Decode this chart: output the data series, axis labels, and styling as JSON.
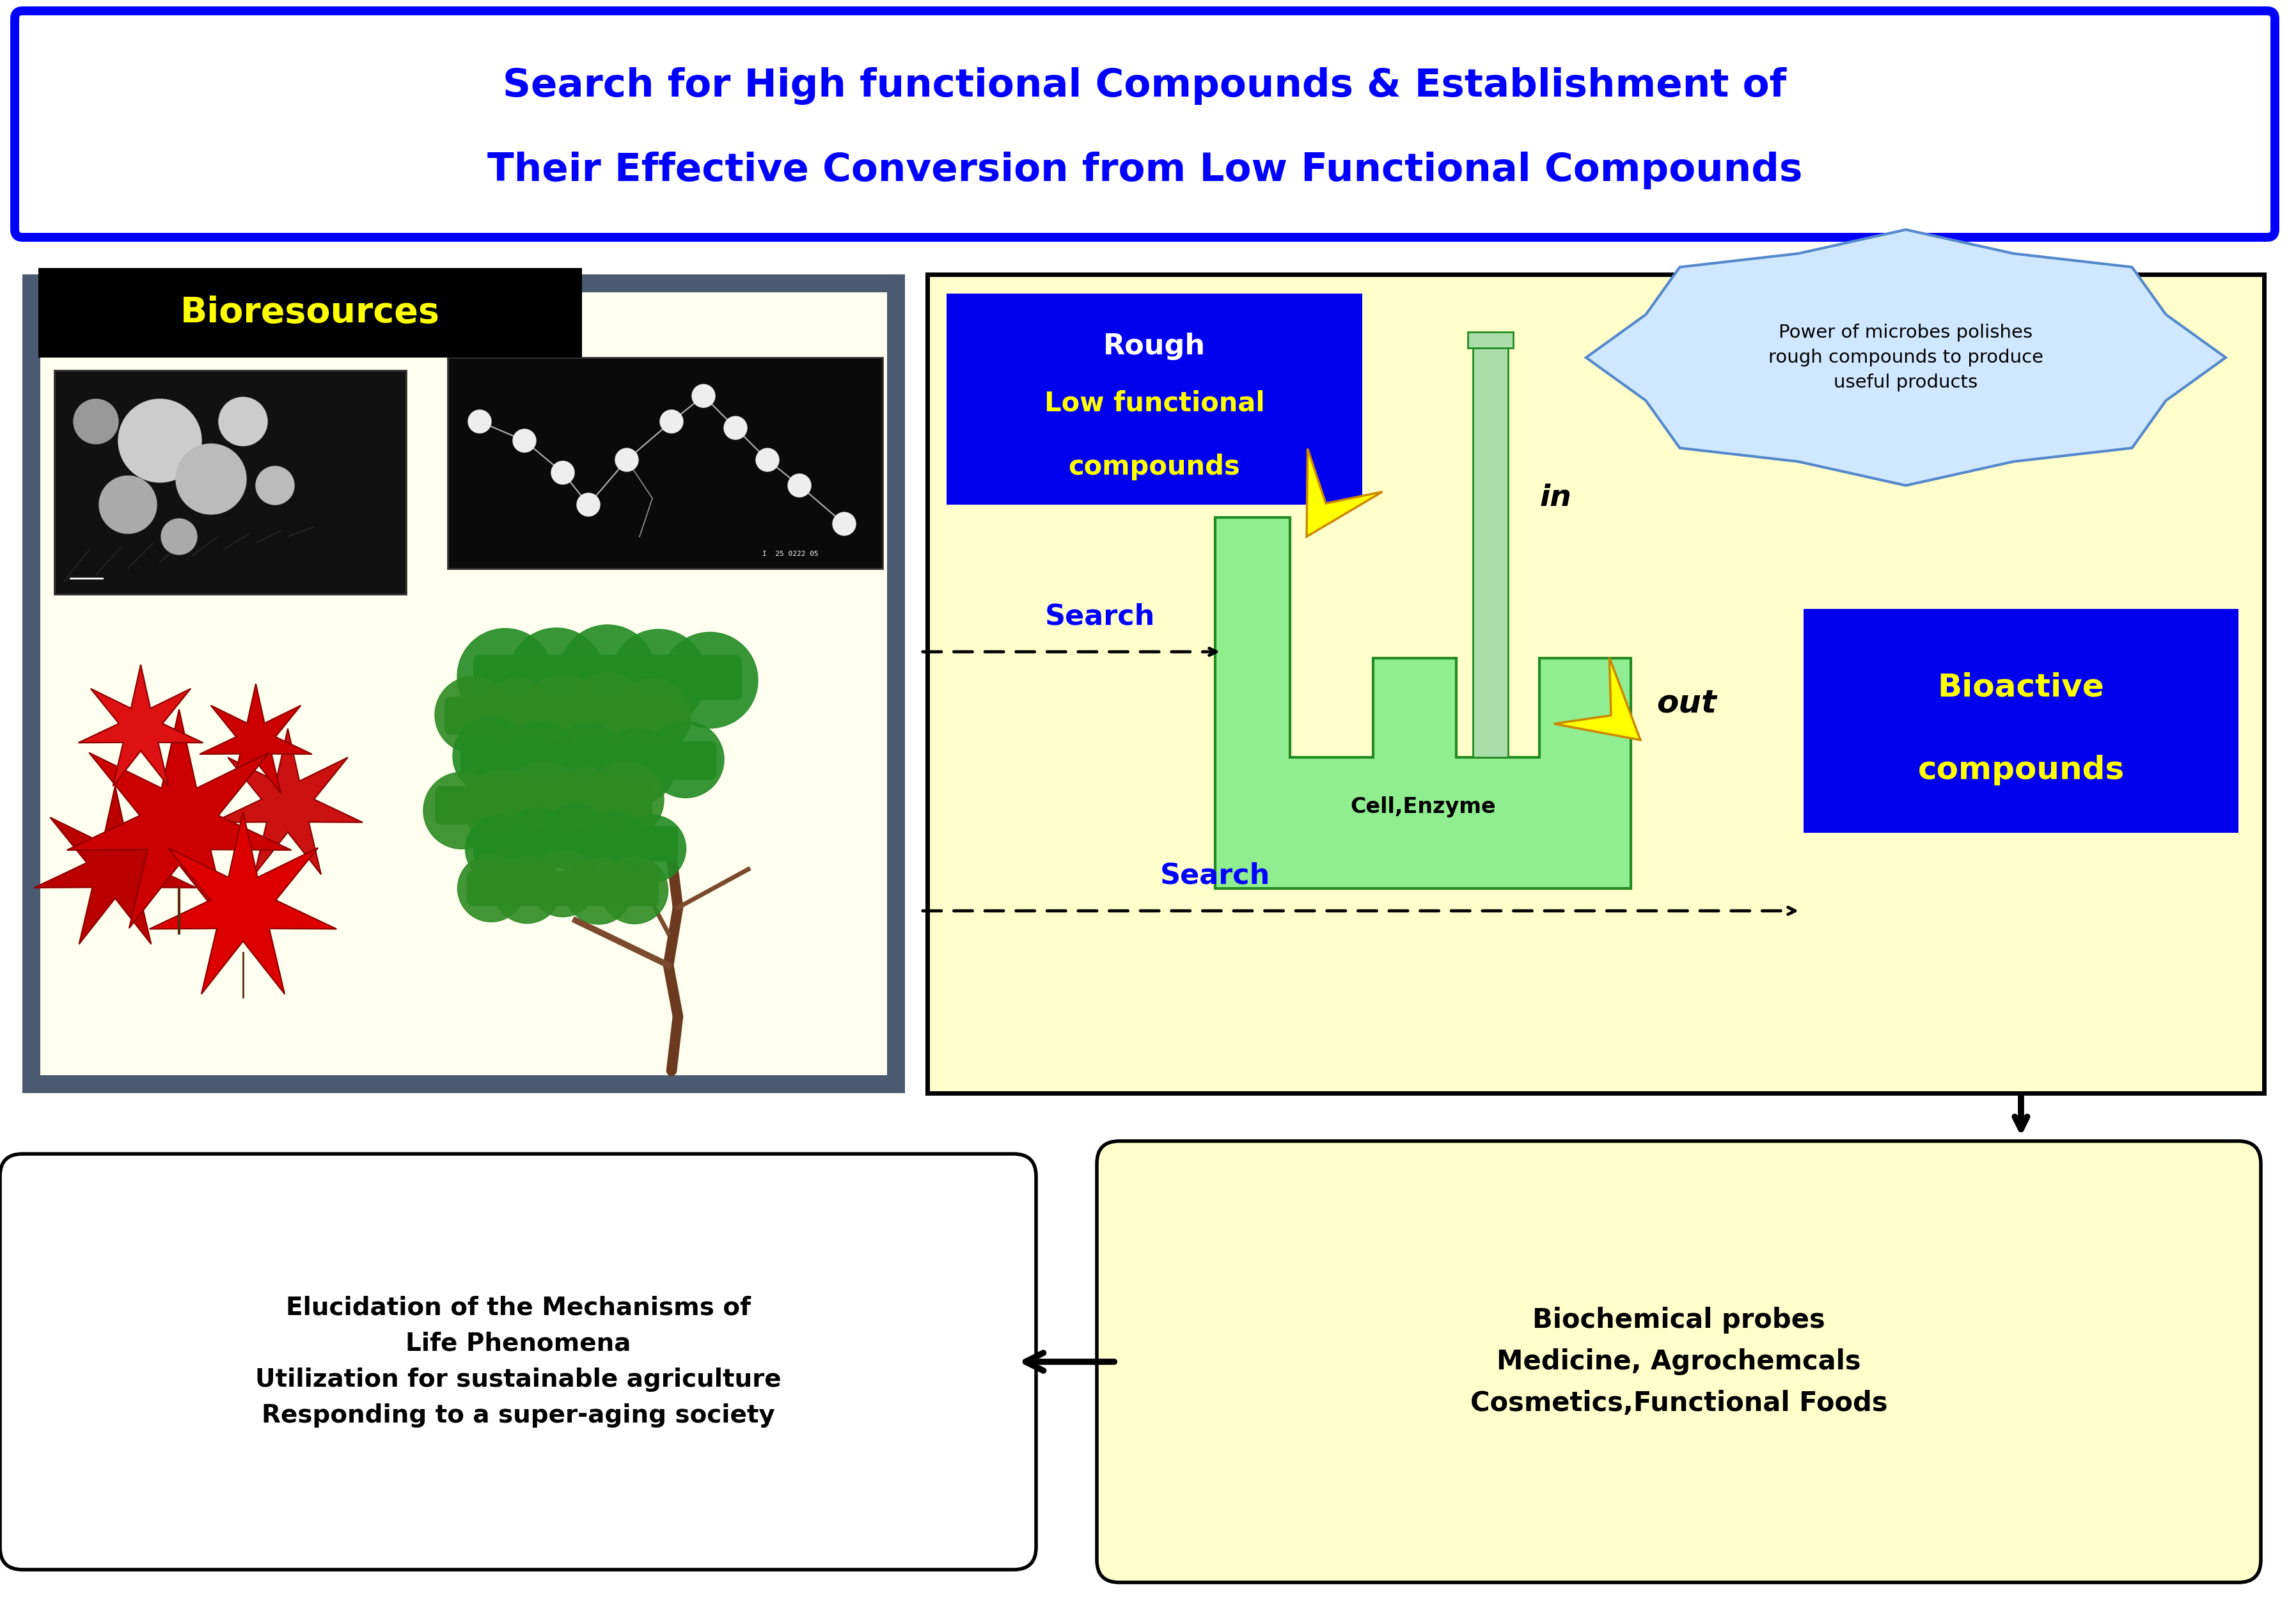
{
  "title_line1": "Search for High functional Compounds & Establishment of",
  "title_line2": "Their Effective Conversion from Low Functional Compounds",
  "title_color": "#0000FF",
  "bioresources_label": "Bioresources",
  "bioresources_label_color": "#FFFF00",
  "bioresources_label_bg": "#000000",
  "left_panel_bg": "#FFFFF0",
  "left_panel_border": "#4A6080",
  "right_panel_bg": "#FFFFCC",
  "right_panel_border": "#000000",
  "rough_box_label1": "Rough",
  "rough_box_label2": "Low functional",
  "rough_box_label3": "compounds",
  "rough_box_bg": "#0000EE",
  "search_text_color": "#0000FF",
  "in_text": "in",
  "out_text": "out",
  "cell_enzyme_text": "Cell,Enzyme",
  "factory_fill": "#90EE90",
  "factory_edge": "#228B22",
  "chimney_fill": "#90EE90",
  "chimney_edge": "#228B22",
  "bioactive_label1": "Bioactive",
  "bioactive_label2": "compounds",
  "bioactive_bg": "#0000EE",
  "bioactive_text_color": "#FFFF00",
  "cloud_text": "Power of microbes polishes\nrough compounds to produce\nuseful products",
  "cloud_bg": "#D0E8FF",
  "cloud_border": "#5588CC",
  "bottom_left_text": "Elucidation of the Mechanisms of\nLife Phenomena\nUtilization for sustainable agriculture\nResponding to a super-aging society",
  "bottom_right_text": "Biochemical probes\nMedicine, Agrochemcals\nCosmetics,Functional Foods",
  "bottom_left_bg": "#FFFFEE",
  "bottom_right_bg": "#FFFFCC",
  "bg_color": "#FFFFFF",
  "arrow_yellow": "#FFFF00",
  "arrow_yellow_edge": "#CC8800"
}
